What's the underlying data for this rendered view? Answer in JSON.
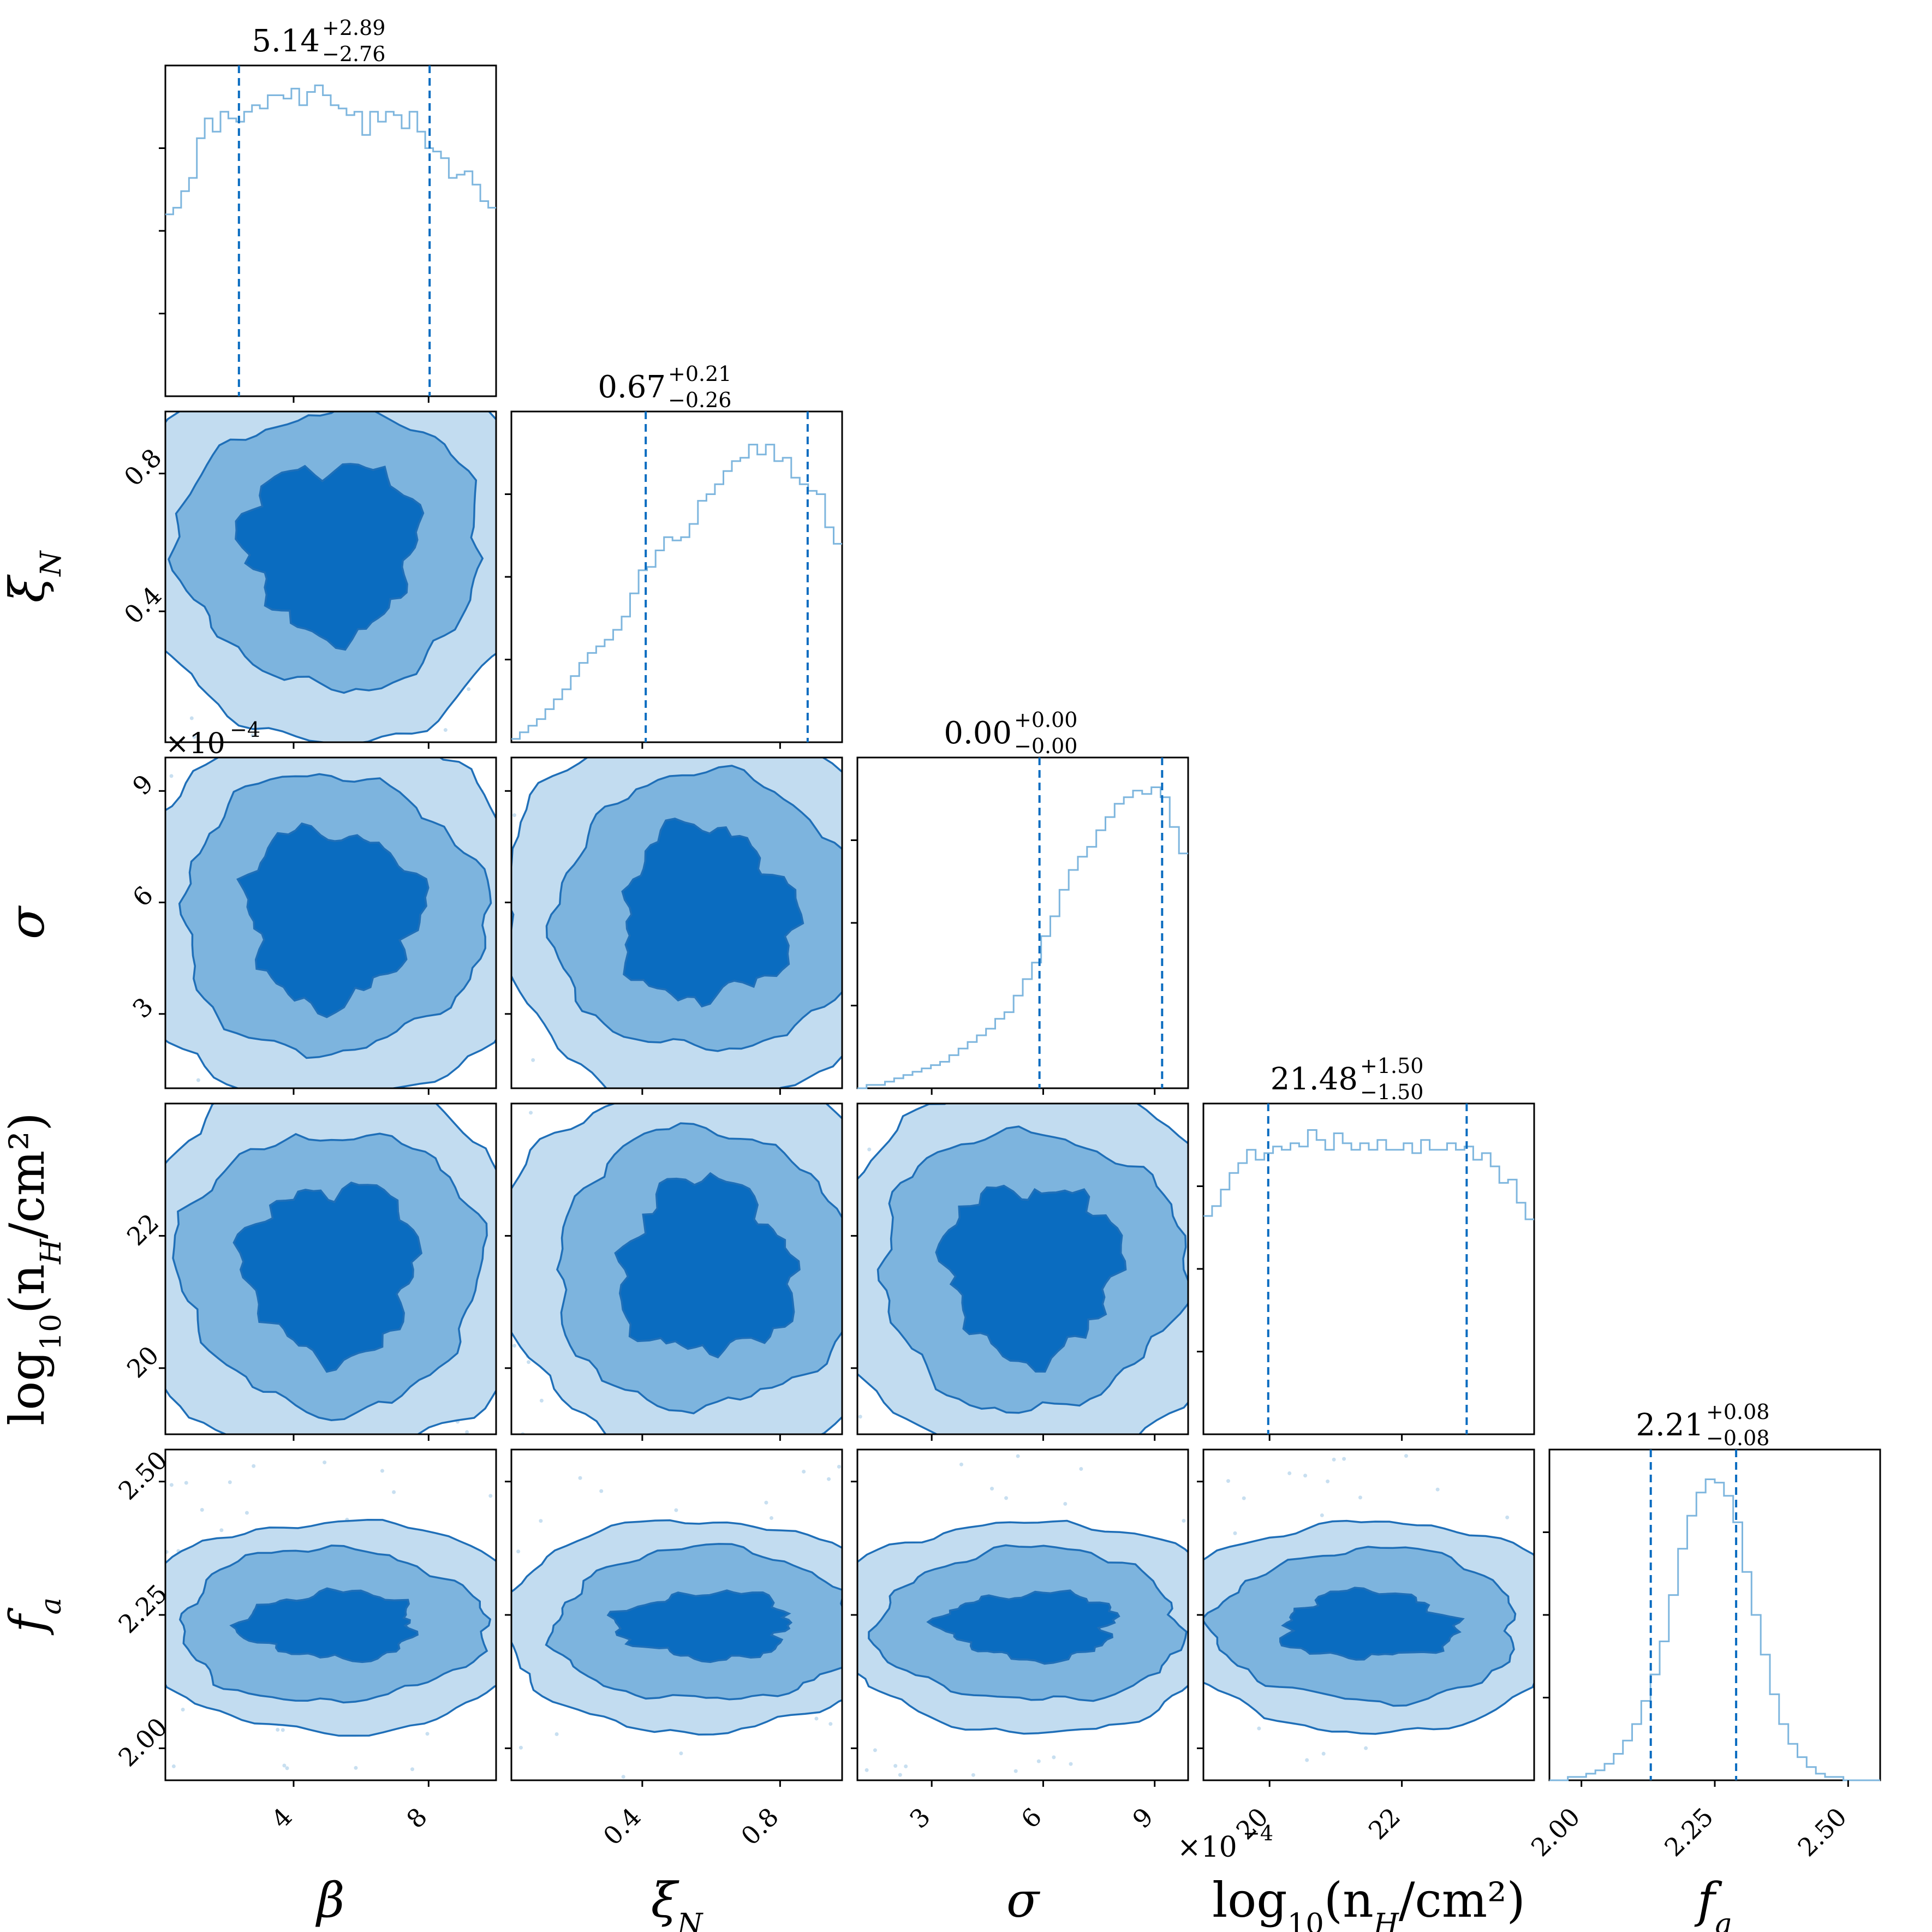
{
  "chart_data": {
    "type": "corner",
    "parameters": [
      {
        "name": "beta",
        "label": "β",
        "range": [
          0.2,
          10.0
        ],
        "ticks": [
          4,
          8
        ],
        "tick_labels": [
          "4",
          "8"
        ],
        "median": 5.14,
        "q_low": 2.38,
        "q_high": 8.03,
        "title": {
          "value": "5.14",
          "plus": "+2.89",
          "minus": "−2.76"
        }
      },
      {
        "name": "xi_N",
        "label": "ξ",
        "label_sub": "N",
        "range": [
          0.02,
          0.98
        ],
        "ticks": [
          0.4,
          0.8
        ],
        "tick_labels": [
          "0.4",
          "0.8"
        ],
        "median": 0.67,
        "q_low": 0.41,
        "q_high": 0.88,
        "title": {
          "value": "0.67",
          "plus": "+0.21",
          "minus": "−0.26"
        }
      },
      {
        "name": "sigma",
        "label": "σ",
        "range": [
          0.0001,
          0.00099
        ],
        "ticks": [
          0.0003,
          0.0006,
          0.0009
        ],
        "tick_labels": [
          "3",
          "6",
          "9"
        ],
        "scale_label": "×10",
        "scale_exp": "−4",
        "median": 0.00059,
        "q_low": 0.00059,
        "q_high": 0.00092,
        "title": {
          "value": "0.00",
          "plus": "+0.00",
          "minus": "−0.00"
        }
      },
      {
        "name": "log10_nH",
        "label": "log",
        "label_sub": "10",
        "label_rest": "(n",
        "label_sub2": "H",
        "label_tail": "/cm²)",
        "range": [
          19.0,
          24.0
        ],
        "ticks": [
          20,
          22
        ],
        "tick_labels": [
          "20",
          "22"
        ],
        "median": 21.48,
        "q_low": 19.98,
        "q_high": 22.98,
        "title": {
          "value": "21.48",
          "plus": "+1.50",
          "minus": "−1.50"
        }
      },
      {
        "name": "f_a",
        "label": "f",
        "label_sub": "a",
        "range": [
          1.94,
          2.56
        ],
        "ticks": [
          2.0,
          2.25,
          2.5
        ],
        "tick_labels": [
          "2.00",
          "2.25",
          "2.50"
        ],
        "median": 2.21,
        "q_low": 2.13,
        "q_high": 2.29,
        "title": {
          "value": "2.21",
          "plus": "+0.08",
          "minus": "−0.08"
        }
      }
    ],
    "histograms": [
      {
        "parameter": "beta",
        "counts": [
          0.55,
          0.57,
          0.62,
          0.66,
          0.78,
          0.84,
          0.8,
          0.86,
          0.84,
          0.83,
          0.86,
          0.88,
          0.87,
          0.91,
          0.91,
          0.9,
          0.93,
          0.88,
          0.92,
          0.94,
          0.91,
          0.88,
          0.87,
          0.85,
          0.86,
          0.79,
          0.86,
          0.83,
          0.86,
          0.85,
          0.81,
          0.86,
          0.8,
          0.75,
          0.74,
          0.72,
          0.66,
          0.67,
          0.68,
          0.64,
          0.59,
          0.57
        ]
      },
      {
        "parameter": "xi_N",
        "counts": [
          0.01,
          0.03,
          0.05,
          0.07,
          0.1,
          0.13,
          0.16,
          0.2,
          0.24,
          0.27,
          0.29,
          0.31,
          0.34,
          0.38,
          0.45,
          0.52,
          0.53,
          0.58,
          0.62,
          0.61,
          0.62,
          0.66,
          0.73,
          0.75,
          0.78,
          0.82,
          0.85,
          0.86,
          0.9,
          0.87,
          0.9,
          0.85,
          0.86,
          0.8,
          0.78,
          0.76,
          0.75,
          0.65,
          0.6
        ]
      },
      {
        "parameter": "sigma",
        "counts": [
          0.0,
          0.01,
          0.01,
          0.02,
          0.03,
          0.04,
          0.05,
          0.06,
          0.07,
          0.08,
          0.1,
          0.12,
          0.14,
          0.16,
          0.18,
          0.21,
          0.23,
          0.28,
          0.33,
          0.38,
          0.46,
          0.52,
          0.6,
          0.66,
          0.7,
          0.73,
          0.78,
          0.82,
          0.86,
          0.88,
          0.9,
          0.89,
          0.91,
          0.88,
          0.79,
          0.71
        ]
      },
      {
        "parameter": "log10_nH",
        "counts": [
          0.66,
          0.69,
          0.74,
          0.79,
          0.82,
          0.86,
          0.83,
          0.85,
          0.87,
          0.86,
          0.88,
          0.87,
          0.92,
          0.89,
          0.86,
          0.91,
          0.88,
          0.86,
          0.88,
          0.86,
          0.89,
          0.86,
          0.86,
          0.88,
          0.85,
          0.89,
          0.86,
          0.86,
          0.88,
          0.86,
          0.87,
          0.83,
          0.85,
          0.81,
          0.76,
          0.77,
          0.7,
          0.65
        ]
      },
      {
        "parameter": "f_a",
        "counts": [
          0.0,
          0.0,
          0.01,
          0.01,
          0.02,
          0.03,
          0.05,
          0.08,
          0.12,
          0.17,
          0.24,
          0.32,
          0.42,
          0.56,
          0.7,
          0.8,
          0.87,
          0.91,
          0.9,
          0.86,
          0.78,
          0.63,
          0.5,
          0.38,
          0.26,
          0.17,
          0.11,
          0.07,
          0.04,
          0.02,
          0.01,
          0.01,
          0.0,
          0.0,
          0.0,
          0.0
        ]
      }
    ],
    "contour_levels": [
      "outer",
      "middle",
      "inner"
    ],
    "colors": {
      "outer": "#c2dcf0",
      "middle": "#7db4de",
      "inner": "#0a6cc0",
      "line": "#1f6fb8",
      "hist": "#7eb6de",
      "quantile": "#0a6cc0"
    }
  }
}
